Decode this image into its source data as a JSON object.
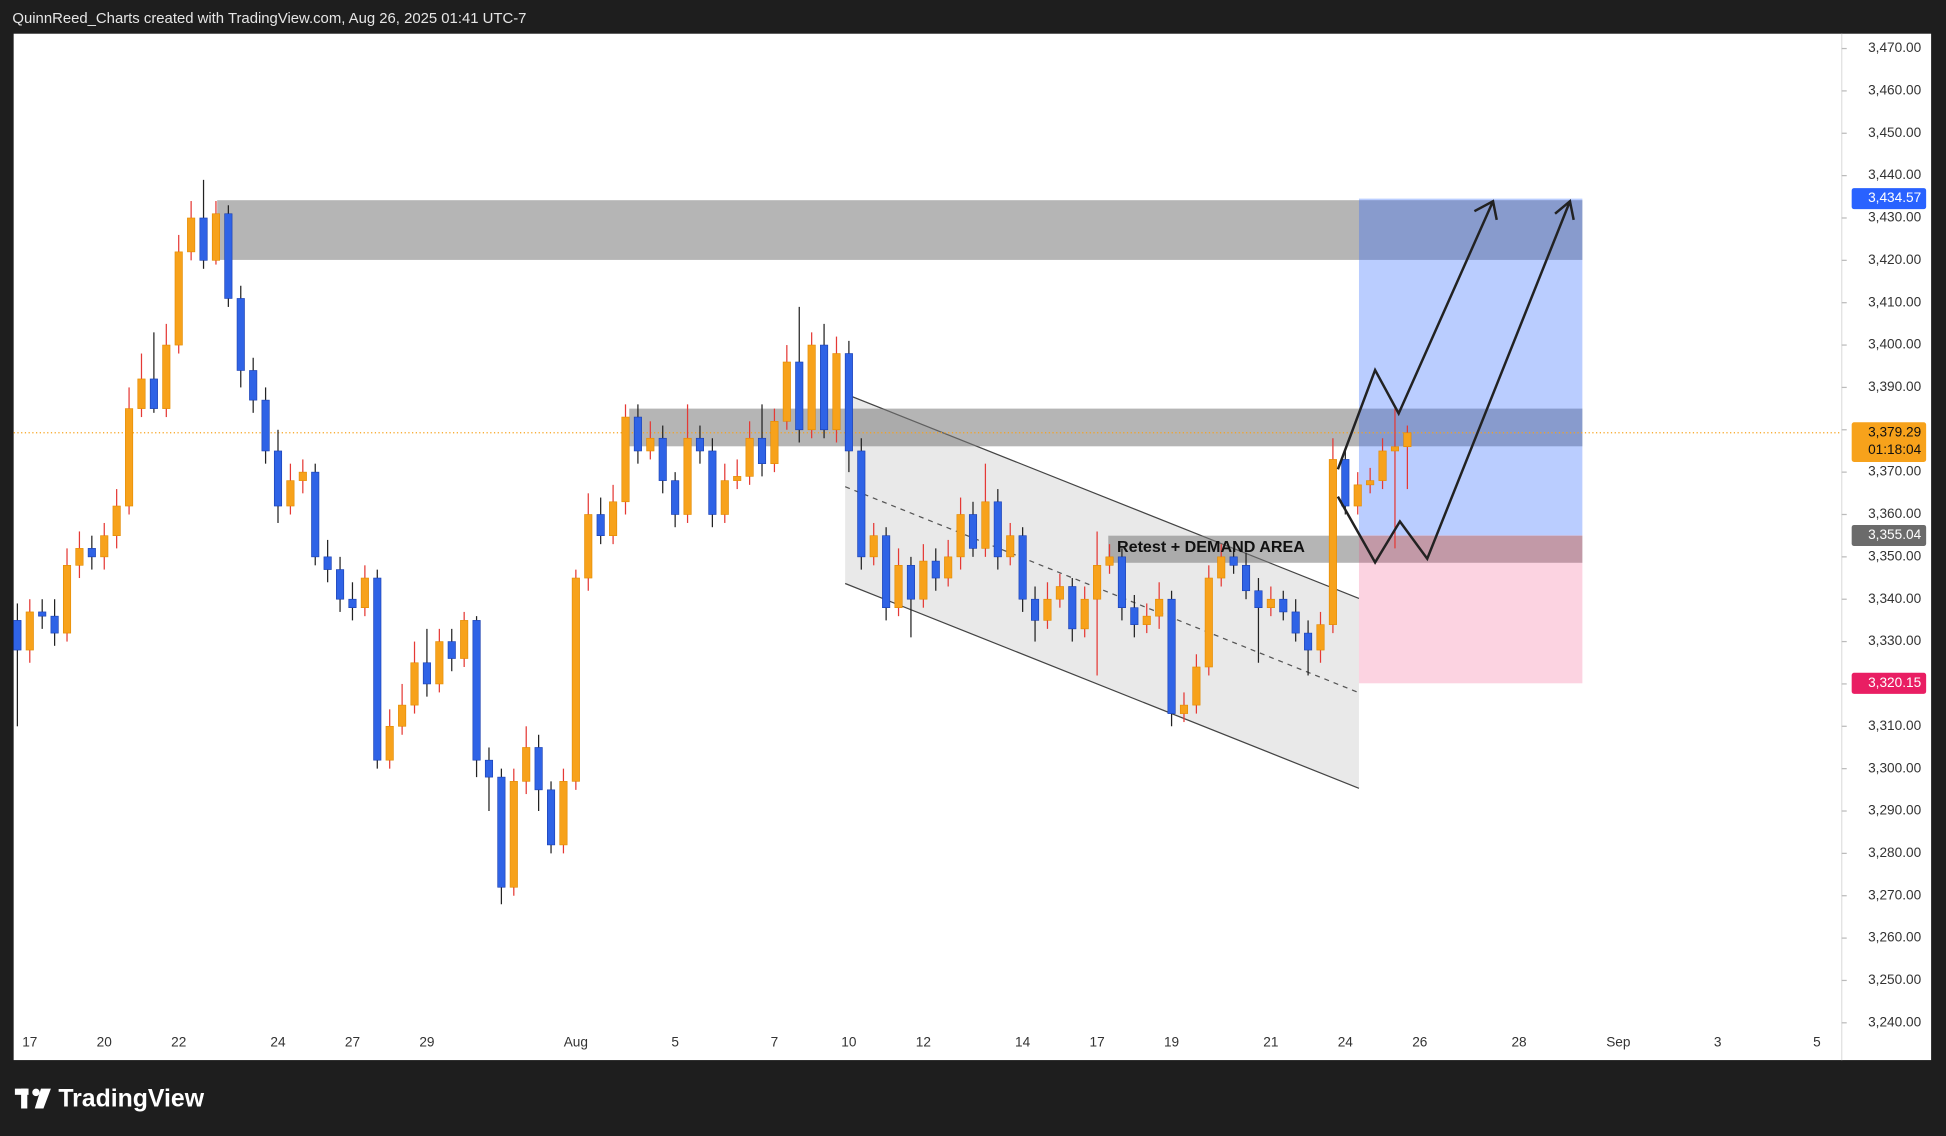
{
  "header": "QuinnReed_Charts created with TradingView.com, Aug 26, 2025 01:41 UTC-7",
  "brand": "TradingView",
  "chart_data": {
    "type": "candlestick",
    "up_color": "#f7a21b",
    "down_color": "#2f63e6",
    "categories": [
      null,
      "17",
      null,
      null,
      null,
      null,
      null,
      "20",
      null,
      null,
      null,
      null,
      null,
      "22",
      null,
      null,
      null,
      null,
      null,
      null,
      null,
      "24",
      null,
      null,
      null,
      null,
      null,
      "27",
      null,
      null,
      null,
      null,
      null,
      "29",
      null,
      null,
      null,
      null,
      null,
      null,
      null,
      null,
      null,
      null,
      null,
      "Aug",
      null,
      null,
      null,
      null,
      null,
      null,
      null,
      "5",
      null,
      null,
      null,
      null,
      null,
      null,
      null,
      "7",
      null,
      null,
      null,
      null,
      null,
      "10",
      null,
      null,
      null,
      null,
      null,
      "12",
      null,
      null,
      null,
      null,
      null,
      null,
      null,
      "14",
      null,
      null,
      null,
      null,
      null,
      "17",
      null,
      null,
      null,
      null,
      null,
      "19",
      null,
      null,
      null,
      null,
      null,
      null,
      null,
      "21",
      null,
      null,
      null,
      null,
      null,
      "24",
      null,
      null,
      null,
      null,
      null,
      "26",
      null,
      null,
      null,
      null,
      null,
      null,
      null,
      "28",
      null,
      null,
      null,
      null,
      null,
      null,
      null,
      "Sep",
      null,
      null,
      null,
      null,
      null,
      null,
      null,
      "3",
      null,
      null,
      null,
      null,
      null,
      null,
      null,
      "5",
      null
    ],
    "open": [
      3335,
      3328,
      3337,
      3336,
      3332,
      3348,
      3352,
      3350,
      3355,
      3362,
      3385,
      3392,
      3385,
      3400,
      3422,
      3430,
      3420,
      3431,
      3411,
      3394,
      3387,
      3375,
      3362,
      3368,
      3370,
      3350,
      3347,
      3340,
      3338,
      3345,
      3302,
      3310,
      3315,
      3325,
      3320,
      3330,
      3326,
      3335,
      3302,
      3298,
      3272,
      3297,
      3305,
      3295,
      3282,
      3297,
      3345,
      3360,
      3355,
      3363,
      3383,
      3375,
      3378,
      3368,
      3360,
      3378,
      3375,
      3360,
      3368,
      3369,
      3378,
      3372,
      3382,
      3396,
      3380,
      3400,
      3380,
      3398,
      3375,
      3350,
      3355,
      3338,
      3348,
      3340,
      3349,
      3345,
      3350,
      3360,
      3352,
      3363,
      3350,
      3355,
      3340,
      3335,
      3340,
      3343,
      3333,
      3340,
      3348,
      3350,
      3338,
      3334,
      3336,
      3340,
      3313,
      3315,
      3324,
      3345,
      3350,
      3348,
      3342,
      3338,
      3340,
      3337,
      3332,
      3328,
      3334,
      3373,
      3362,
      3367,
      3368,
      3375,
      3376,
      null,
      null,
      null,
      null,
      null,
      null,
      null,
      null,
      null,
      null,
      null,
      null,
      null,
      null,
      null,
      null,
      null,
      null,
      null,
      null,
      null,
      null,
      null,
      null,
      null,
      null,
      null,
      null,
      null,
      null,
      null,
      null,
      null,
      null
    ],
    "high": [
      3339,
      3340,
      3340,
      3340,
      3352,
      3356,
      3355,
      3358,
      3366,
      3390,
      3398,
      3403,
      3405,
      3426,
      3434,
      3439,
      3434,
      3433,
      3414,
      3397,
      3390,
      3380,
      3372,
      3373,
      3372,
      3354,
      3350,
      3344,
      3348,
      3347,
      3314,
      3320,
      3330,
      3333,
      3333,
      3333,
      3337,
      3336,
      3305,
      3300,
      3300,
      3310,
      3308,
      3297,
      3300,
      3347,
      3365,
      3364,
      3367,
      3386,
      3386,
      3382,
      3381,
      3370,
      3386,
      3381,
      3378,
      3372,
      3373,
      3382,
      3386,
      3385,
      3400,
      3409,
      3403,
      3405,
      3402,
      3401,
      3378,
      3358,
      3357,
      3352,
      3350,
      3353,
      3352,
      3354,
      3364,
      3363,
      3372,
      3366,
      3358,
      3357,
      3343,
      3344,
      3346,
      3345,
      3343,
      3356,
      3353,
      3352,
      3341,
      3339,
      3344,
      3342,
      3318,
      3327,
      3348,
      3353,
      3352,
      3351,
      3345,
      3343,
      3342,
      3340,
      3335,
      3337,
      3378,
      3375,
      3370,
      3371,
      3378,
      3385,
      3381,
      null,
      null,
      null,
      null,
      null,
      null,
      null,
      null,
      null,
      null,
      null,
      null,
      null,
      null,
      null,
      null,
      null,
      null,
      null,
      null,
      null,
      null,
      null,
      null,
      null,
      null,
      null,
      null,
      null,
      null,
      null,
      null,
      null,
      null
    ],
    "low": [
      3310,
      3325,
      3333,
      3329,
      3330,
      3345,
      3347,
      3347,
      3352,
      3360,
      3383,
      3384,
      3383,
      3398,
      3420,
      3418,
      3419,
      3409,
      3390,
      3384,
      3372,
      3358,
      3360,
      3365,
      3348,
      3344,
      3337,
      3335,
      3336,
      3300,
      3300,
      3308,
      3313,
      3317,
      3318,
      3323,
      3324,
      3298,
      3290,
      3268,
      3270,
      3294,
      3290,
      3280,
      3280,
      3295,
      3342,
      3353,
      3353,
      3360,
      3372,
      3373,
      3365,
      3357,
      3358,
      3372,
      3357,
      3358,
      3366,
      3367,
      3369,
      3370,
      3380,
      3377,
      3378,
      3378,
      3377,
      3370,
      3347,
      3348,
      3335,
      3336,
      3331,
      3338,
      3342,
      3343,
      3347,
      3350,
      3350,
      3347,
      3348,
      3337,
      3330,
      3333,
      3338,
      3330,
      3331,
      3322,
      3346,
      3335,
      3331,
      3332,
      3333,
      3310,
      3311,
      3313,
      3322,
      3343,
      3346,
      3340,
      3325,
      3336,
      3335,
      3330,
      3322,
      3325,
      3332,
      3360,
      3360,
      3365,
      3366,
      3352,
      3366,
      null,
      null,
      null,
      null,
      null,
      null,
      null,
      null,
      null,
      null,
      null,
      null,
      null,
      null,
      null,
      null,
      null,
      null,
      null,
      null,
      null,
      null,
      null,
      null,
      null,
      null,
      null,
      null,
      null,
      null,
      null,
      null,
      null,
      null
    ],
    "close": [
      3328,
      3337,
      3336,
      3332,
      3348,
      3352,
      3350,
      3355,
      3362,
      3385,
      3392,
      3385,
      3400,
      3422,
      3430,
      3420,
      3431,
      3411,
      3394,
      3387,
      3375,
      3362,
      3368,
      3370,
      3350,
      3347,
      3340,
      3338,
      3345,
      3302,
      3310,
      3315,
      3325,
      3320,
      3330,
      3326,
      3335,
      3302,
      3298,
      3272,
      3297,
      3305,
      3295,
      3282,
      3297,
      3345,
      3360,
      3355,
      3363,
      3383,
      3375,
      3378,
      3368,
      3360,
      3378,
      3375,
      3360,
      3368,
      3369,
      3378,
      3372,
      3382,
      3396,
      3380,
      3400,
      3380,
      3398,
      3375,
      3350,
      3355,
      3338,
      3348,
      3340,
      3349,
      3345,
      3350,
      3360,
      3352,
      3363,
      3350,
      3355,
      3340,
      3335,
      3340,
      3343,
      3333,
      3340,
      3348,
      3350,
      3338,
      3334,
      3336,
      3340,
      3313,
      3315,
      3324,
      3345,
      3350,
      3348,
      3342,
      3338,
      3340,
      3337,
      3332,
      3328,
      3334,
      3373,
      3362,
      3367,
      3368,
      3375,
      3376,
      3379.29,
      null,
      null,
      null,
      null,
      null,
      null,
      null,
      null,
      null,
      null,
      null,
      null,
      null,
      null,
      null,
      null,
      null,
      null,
      null,
      null,
      null,
      null,
      null,
      null,
      null,
      null,
      null,
      null,
      null,
      null,
      null,
      null,
      null,
      null
    ],
    "ylim": [
      3231.2,
      3473.5
    ],
    "yticks": [
      {
        "value": 3240,
        "label": "3,240.00"
      },
      {
        "value": 3250,
        "label": "3,250.00"
      },
      {
        "value": 3260,
        "label": "3,260.00"
      },
      {
        "value": 3270,
        "label": "3,270.00"
      },
      {
        "value": 3280,
        "label": "3,280.00"
      },
      {
        "value": 3290,
        "label": "3,290.00"
      },
      {
        "value": 3300,
        "label": "3,300.00"
      },
      {
        "value": 3310,
        "label": "3,310.00"
      },
      {
        "value": 3320,
        "label": "3,320.00"
      },
      {
        "value": 3330,
        "label": "3,330.00"
      },
      {
        "value": 3340,
        "label": "3,340.00"
      },
      {
        "value": 3350,
        "label": "3,350.00"
      },
      {
        "value": 3360,
        "label": "3,360.00"
      },
      {
        "value": 3370,
        "label": "3,370.00"
      },
      {
        "value": 3380,
        "label": "3,380.00"
      },
      {
        "value": 3390,
        "label": "3,390.00"
      },
      {
        "value": 3400,
        "label": "3,400.00"
      },
      {
        "value": 3410,
        "label": "3,410.00"
      },
      {
        "value": 3420,
        "label": "3,420.00"
      },
      {
        "value": 3430,
        "label": "3,430.00"
      },
      {
        "value": 3440,
        "label": "3,440.00"
      },
      {
        "value": 3450,
        "label": "3,450.00"
      },
      {
        "value": 3460,
        "label": "3,460.00"
      },
      {
        "value": 3470,
        "label": "3,470.00"
      }
    ],
    "grid": false,
    "zones": [
      {
        "top": 3434.2,
        "bottom": 3420.1
      },
      {
        "top": 3385,
        "bottom": 3376.1
      },
      {
        "top": 3355,
        "bottom": 3348.6
      }
    ],
    "annotation": "Retest + DEMAND AREA",
    "price_labels": [
      {
        "value": 3434.57,
        "label": "3,434.57",
        "color": "#2962ff"
      },
      {
        "value": 3379.29,
        "label": "3,379.29",
        "color": "#f7a21b"
      },
      {
        "value": 3355.04,
        "label": "3,355.04",
        "color": "#6b6b6b"
      },
      {
        "value": 3320.15,
        "label": "3,320.15",
        "color": "#e91e63"
      }
    ],
    "countdown": "01:18:04"
  }
}
